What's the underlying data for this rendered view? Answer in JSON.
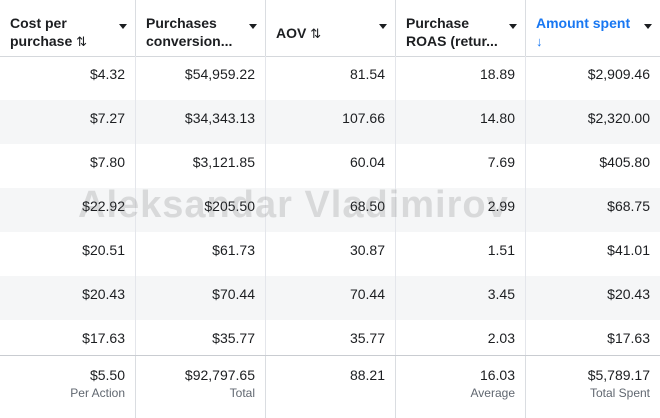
{
  "headers": [
    {
      "line1": "Cost per",
      "line2": "purchase",
      "sort": "⇅"
    },
    {
      "line1": "Purchases",
      "line2": "conversion...",
      "sort": ""
    },
    {
      "line1": "AOV",
      "line2": "",
      "sort": "⇅"
    },
    {
      "line1": "Purchase",
      "line2": "ROAS (retur...",
      "sort": ""
    },
    {
      "line1": "Amount spent",
      "line2": "",
      "sort": "↓"
    }
  ],
  "rows": [
    [
      "$4.32",
      "$54,959.22",
      "81.54",
      "18.89",
      "$2,909.46"
    ],
    [
      "$7.27",
      "$34,343.13",
      "107.66",
      "14.80",
      "$2,320.00"
    ],
    [
      "$7.80",
      "$3,121.85",
      "60.04",
      "7.69",
      "$405.80"
    ],
    [
      "$22.92",
      "$205.50",
      "68.50",
      "2.99",
      "$68.75"
    ],
    [
      "$20.51",
      "$61.73",
      "30.87",
      "1.51",
      "$41.01"
    ],
    [
      "$20.43",
      "$70.44",
      "70.44",
      "3.45",
      "$20.43"
    ],
    [
      "$17.63",
      "$35.77",
      "35.77",
      "2.03",
      "$17.63"
    ]
  ],
  "totals": [
    {
      "value": "$5.50",
      "label": "Per Action"
    },
    {
      "value": "$92,797.65",
      "label": "Total"
    },
    {
      "value": "88.21",
      "label": ""
    },
    {
      "value": "16.03",
      "label": "Average"
    },
    {
      "value": "$5,789.17",
      "label": "Total Spent"
    }
  ],
  "watermark": "Aleksandar Vladimirov",
  "colors": {
    "accent": "#1877f2",
    "alt_row": "#f5f6f7"
  }
}
